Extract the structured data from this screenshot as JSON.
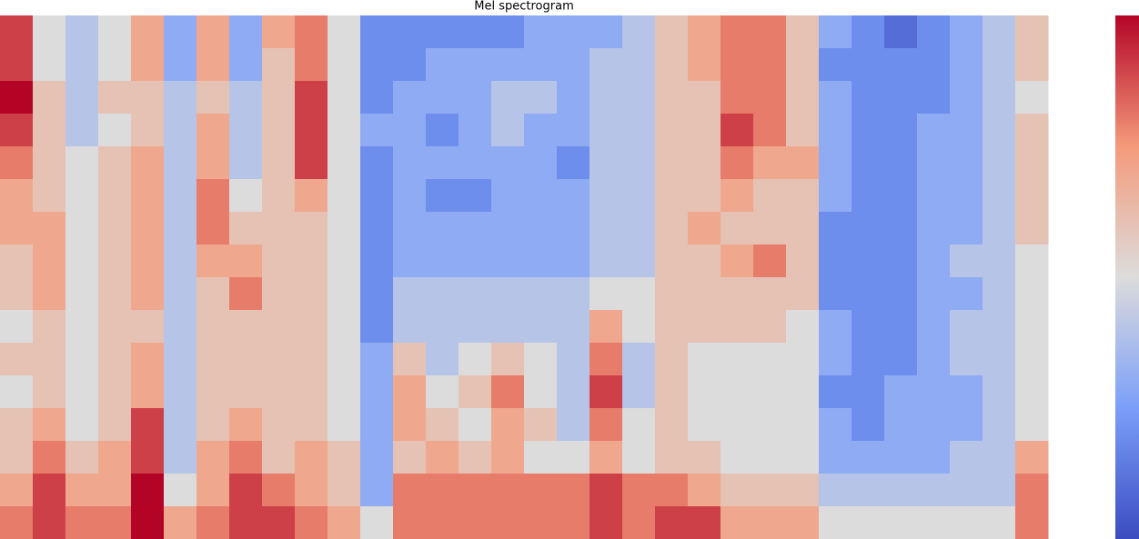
{
  "chart_data": {
    "type": "heatmap",
    "title": "Mel spectrogram",
    "zlim": [
      0,
      10
    ],
    "colormap": [
      "#3b4cc0",
      "#7b9ff9",
      "#dddcdc",
      "#f49a7b",
      "#b40426"
    ],
    "values": [
      [
        9,
        5,
        4,
        5,
        7,
        3,
        7,
        3,
        7,
        8,
        5,
        2,
        2,
        2,
        2,
        2,
        3,
        3,
        3,
        4,
        6,
        7,
        8,
        8,
        6,
        3,
        2,
        1,
        2,
        3,
        4,
        6
      ],
      [
        9,
        5,
        4,
        5,
        7,
        3,
        7,
        3,
        6,
        8,
        5,
        2,
        2,
        3,
        3,
        3,
        3,
        3,
        4,
        4,
        6,
        7,
        8,
        8,
        6,
        2,
        2,
        2,
        2,
        3,
        4,
        6
      ],
      [
        10,
        6,
        4,
        6,
        6,
        4,
        6,
        4,
        6,
        9,
        5,
        2,
        3,
        3,
        3,
        4,
        4,
        3,
        4,
        4,
        6,
        6,
        8,
        8,
        6,
        3,
        2,
        2,
        2,
        3,
        4,
        5
      ],
      [
        9,
        6,
        4,
        5,
        6,
        4,
        7,
        4,
        6,
        9,
        5,
        3,
        3,
        2,
        3,
        4,
        3,
        3,
        4,
        4,
        6,
        6,
        9,
        8,
        6,
        3,
        2,
        2,
        3,
        3,
        4,
        6
      ],
      [
        8,
        6,
        5,
        6,
        7,
        4,
        7,
        4,
        6,
        9,
        5,
        2,
        3,
        3,
        3,
        3,
        3,
        2,
        4,
        4,
        6,
        6,
        8,
        7,
        7,
        3,
        2,
        2,
        3,
        3,
        4,
        6
      ],
      [
        7,
        6,
        5,
        6,
        7,
        4,
        8,
        5,
        6,
        7,
        5,
        2,
        3,
        2,
        2,
        3,
        3,
        3,
        4,
        4,
        6,
        6,
        7,
        6,
        6,
        3,
        2,
        2,
        3,
        3,
        4,
        6
      ],
      [
        7,
        7,
        5,
        6,
        7,
        4,
        8,
        6,
        6,
        6,
        5,
        2,
        3,
        3,
        3,
        3,
        3,
        3,
        4,
        4,
        6,
        7,
        6,
        6,
        6,
        2,
        2,
        2,
        3,
        3,
        4,
        6
      ],
      [
        6,
        7,
        5,
        6,
        7,
        4,
        7,
        7,
        6,
        6,
        5,
        2,
        3,
        3,
        3,
        3,
        3,
        3,
        4,
        4,
        6,
        6,
        7,
        8,
        6,
        2,
        2,
        2,
        3,
        4,
        4,
        5
      ],
      [
        6,
        7,
        5,
        6,
        7,
        4,
        6,
        8,
        6,
        6,
        5,
        2,
        4,
        4,
        4,
        4,
        4,
        4,
        5,
        5,
        6,
        6,
        6,
        6,
        6,
        2,
        2,
        2,
        3,
        3,
        4,
        5
      ],
      [
        5,
        6,
        5,
        6,
        6,
        4,
        6,
        6,
        6,
        6,
        5,
        2,
        4,
        4,
        4,
        4,
        4,
        4,
        7,
        5,
        6,
        6,
        6,
        6,
        5,
        3,
        2,
        2,
        3,
        4,
        4,
        5
      ],
      [
        6,
        6,
        5,
        6,
        7,
        4,
        6,
        6,
        6,
        6,
        5,
        3,
        6,
        4,
        5,
        6,
        5,
        4,
        8,
        4,
        6,
        5,
        5,
        5,
        5,
        3,
        2,
        2,
        3,
        4,
        4,
        5
      ],
      [
        5,
        6,
        5,
        6,
        7,
        4,
        6,
        6,
        6,
        6,
        5,
        3,
        7,
        5,
        6,
        8,
        5,
        4,
        9,
        4,
        6,
        5,
        5,
        5,
        5,
        2,
        2,
        3,
        3,
        3,
        4,
        5
      ],
      [
        6,
        7,
        5,
        6,
        9,
        4,
        6,
        7,
        6,
        6,
        5,
        3,
        7,
        6,
        5,
        7,
        6,
        4,
        8,
        5,
        6,
        5,
        5,
        5,
        5,
        3,
        2,
        3,
        3,
        3,
        4,
        5
      ],
      [
        6,
        8,
        6,
        7,
        9,
        4,
        7,
        8,
        6,
        7,
        6,
        3,
        6,
        7,
        6,
        7,
        5,
        5,
        7,
        5,
        6,
        6,
        5,
        5,
        5,
        3,
        3,
        3,
        3,
        4,
        4,
        7
      ],
      [
        7,
        9,
        7,
        7,
        10,
        5,
        7,
        9,
        8,
        7,
        6,
        3,
        8,
        8,
        8,
        8,
        8,
        8,
        9,
        8,
        8,
        7,
        6,
        6,
        6,
        4,
        4,
        4,
        4,
        4,
        4,
        8
      ],
      [
        8,
        9,
        8,
        8,
        10,
        7,
        8,
        9,
        9,
        8,
        7,
        5,
        8,
        8,
        8,
        8,
        8,
        8,
        9,
        8,
        9,
        9,
        7,
        7,
        7,
        5,
        5,
        5,
        5,
        5,
        5,
        8
      ]
    ]
  }
}
